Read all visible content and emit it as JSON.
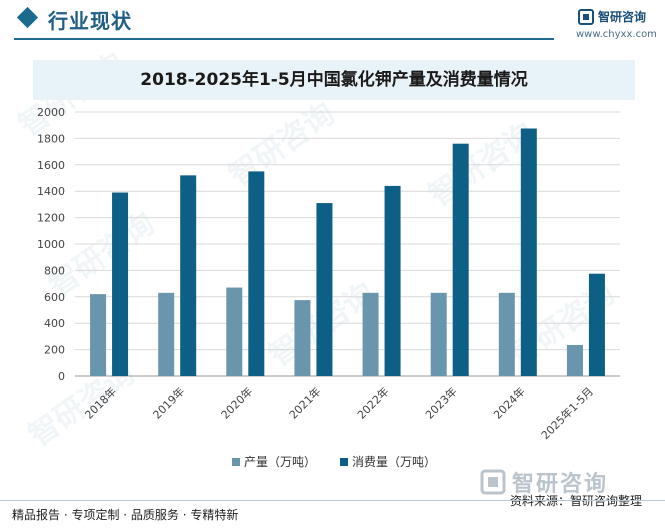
{
  "header": {
    "section_title": "行业现状",
    "brand": "智研咨询",
    "url": "www.chyxx.com"
  },
  "chart_data": {
    "type": "bar",
    "title": "2018-2025年1-5月中国氯化钾产量及消费量情况",
    "categories": [
      "2018年",
      "2019年",
      "2020年",
      "2021年",
      "2022年",
      "2023年",
      "2024年",
      "2025年1-5月"
    ],
    "series": [
      {
        "name": "产量（万吨）",
        "color": "#6996ad",
        "values": [
          620,
          630,
          670,
          575,
          630,
          630,
          630,
          235
        ]
      },
      {
        "name": "消费量（万吨）",
        "color": "#0d5f86",
        "values": [
          1390,
          1520,
          1550,
          1310,
          1440,
          1760,
          1875,
          775
        ]
      }
    ],
    "ylim": [
      0,
      2000
    ],
    "yticks": [
      0,
      200,
      400,
      600,
      800,
      1000,
      1200,
      1400,
      1600,
      1800,
      2000
    ],
    "grid": true,
    "legend_position": "bottom"
  },
  "footer": {
    "services": "精品报告 · 专项定制 · 品质服务 · 专精特新",
    "logo_text": "智研咨询",
    "source": "资料来源：智研咨询整理"
  }
}
